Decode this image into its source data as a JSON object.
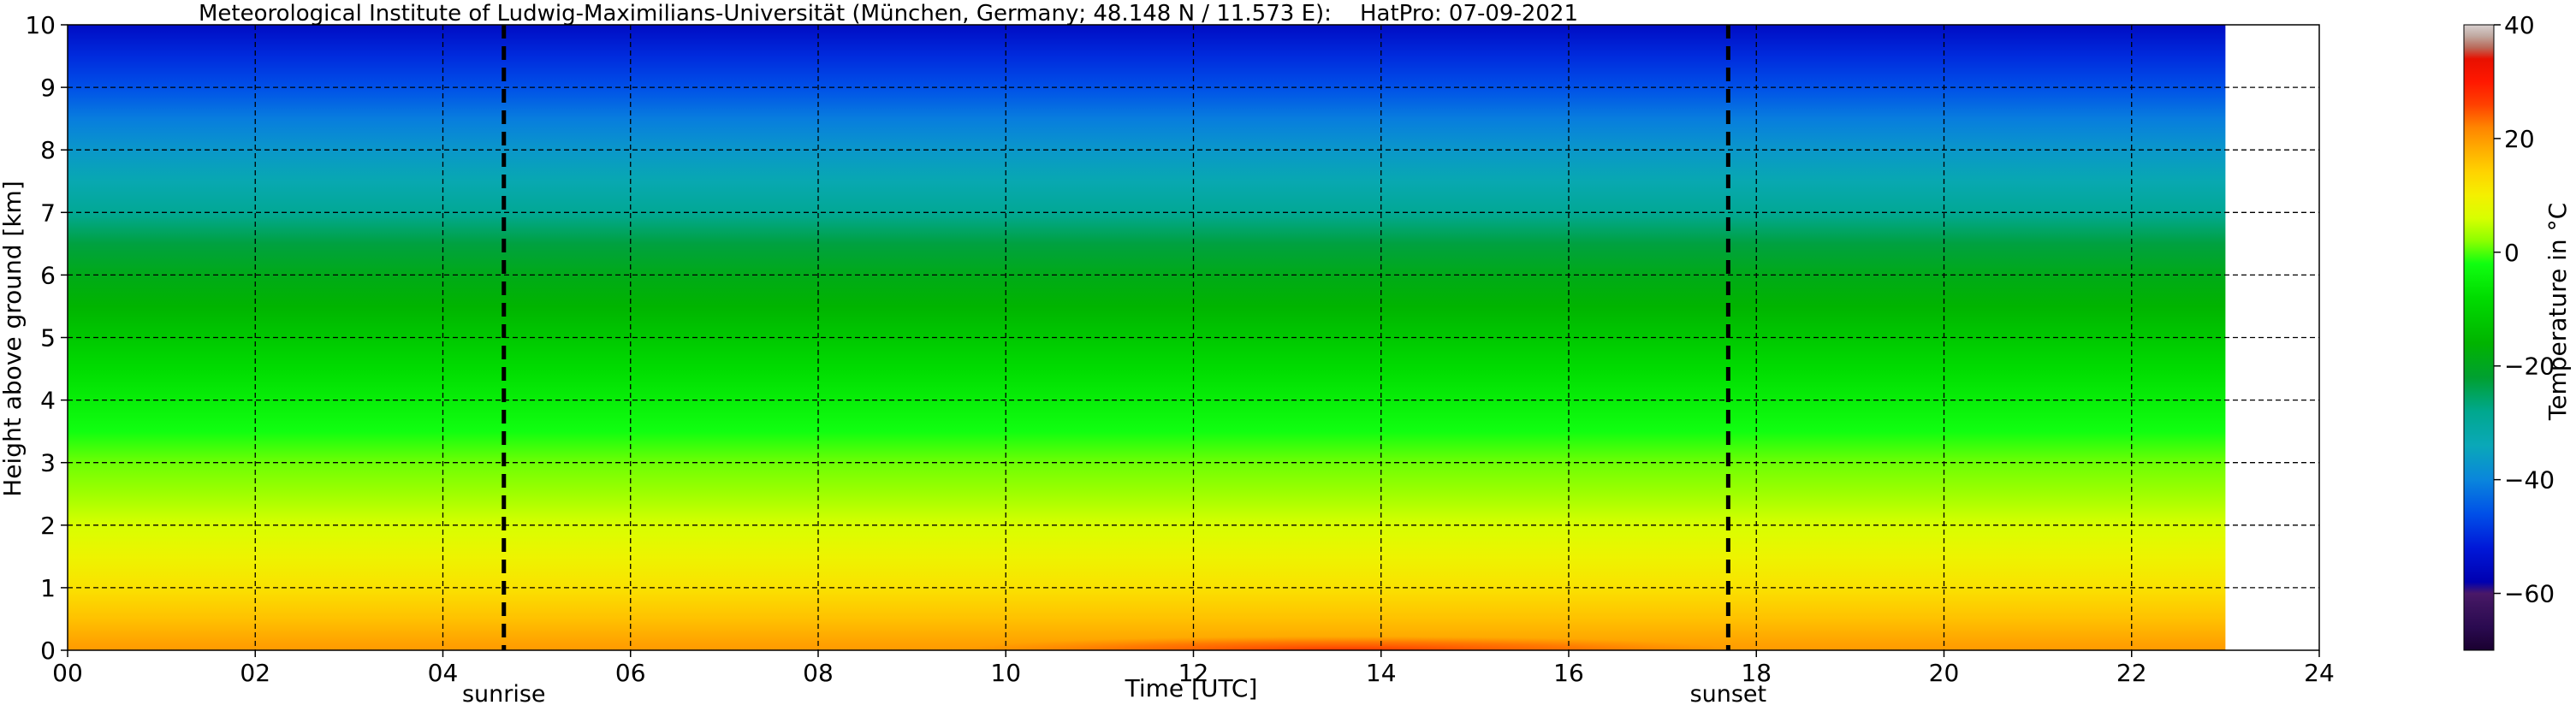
{
  "chart_data": {
    "type": "heatmap",
    "title": "Meteorological Institute of Ludwig-Maximilians-Universität (München, Germany; 48.148 N / 11.573 E):    HatPro: 07-09-2021",
    "xlabel": "Time [UTC]",
    "ylabel": "Height above ground [km]",
    "xlim": [
      0,
      24
    ],
    "ylim": [
      0,
      10
    ],
    "x_ticks": [
      0,
      2,
      4,
      6,
      8,
      10,
      12,
      14,
      16,
      18,
      20,
      22,
      24
    ],
    "x_tick_labels": [
      "00",
      "02",
      "04",
      "06",
      "08",
      "10",
      "12",
      "14",
      "16",
      "18",
      "20",
      "22",
      "24"
    ],
    "y_ticks": [
      0,
      1,
      2,
      3,
      4,
      5,
      6,
      7,
      8,
      9,
      10
    ],
    "y_tick_labels": [
      "0",
      "1",
      "2",
      "3",
      "4",
      "5",
      "6",
      "7",
      "8",
      "9",
      "10"
    ],
    "grid": true,
    "data_time_range": [
      0,
      23
    ],
    "annotations": [
      {
        "label": "sunrise",
        "x": 4.65
      },
      {
        "label": "sunset",
        "x": 17.7
      }
    ],
    "profile": {
      "heights_km": [
        0,
        0.5,
        1,
        1.5,
        2,
        2.5,
        3,
        3.5,
        4,
        4.5,
        5,
        5.5,
        6,
        6.5,
        7,
        7.5,
        8,
        8.5,
        9,
        9.5,
        10
      ],
      "temperature_c": [
        20,
        16,
        12,
        9,
        6,
        3,
        1,
        -2,
        -5,
        -8,
        -12,
        -16,
        -19,
        -23,
        -29,
        -33,
        -37,
        -41,
        -46,
        -50,
        -55
      ]
    },
    "afternoon_surface_max_c": 25,
    "colorbar": {
      "label": "Temperature in °C",
      "range": [
        -70,
        40
      ],
      "ticks": [
        -60,
        -40,
        -20,
        0,
        20,
        40
      ],
      "tick_labels": [
        "−60",
        "−40",
        "−20",
        "0",
        "20",
        "40"
      ]
    }
  }
}
